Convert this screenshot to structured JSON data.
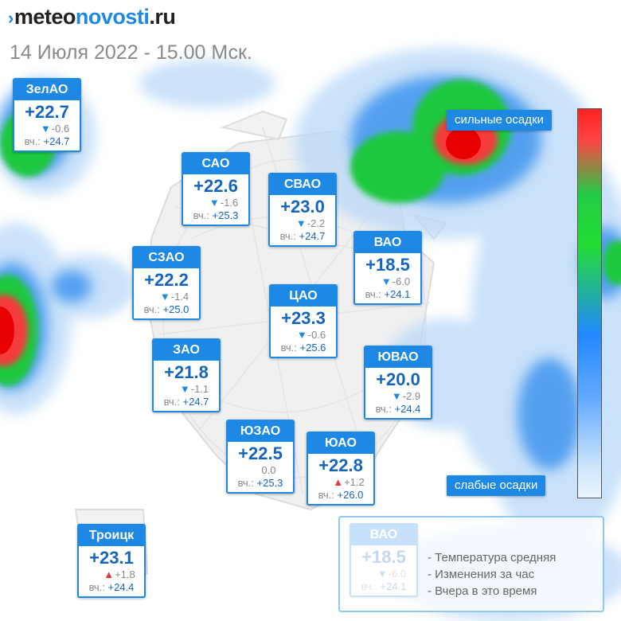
{
  "brand": {
    "part1": "meteo",
    "part2": "novosti",
    "part3": ".ru",
    "mark": "›"
  },
  "subtitle": "14 Июля 2022 - 15.00 Мск.",
  "colors": {
    "accent": "#1e88e5",
    "down_arrow": "#1e88e5",
    "up_arrow": "#e53935",
    "heavy": "#ff2222",
    "medium": "#22cc44",
    "light": "#66aaff"
  },
  "districts": [
    {
      "name": "ЗелАО",
      "temp": "+22.7",
      "trend": "down",
      "arrow": "▼",
      "change": "-0.6",
      "yday_label": "вч.:",
      "yday": "+24.7"
    },
    {
      "name": "САО",
      "temp": "+22.6",
      "trend": "down",
      "arrow": "▼",
      "change": "-1.6",
      "yday_label": "вч.:",
      "yday": "+25.3"
    },
    {
      "name": "СВАО",
      "temp": "+23.0",
      "trend": "down",
      "arrow": "▼",
      "change": "-2.2",
      "yday_label": "вч.:",
      "yday": "+24.7"
    },
    {
      "name": "ВАО",
      "temp": "+18.5",
      "trend": "down",
      "arrow": "▼",
      "change": "-6.0",
      "yday_label": "вч.:",
      "yday": "+24.1"
    },
    {
      "name": "СЗАО",
      "temp": "+22.2",
      "trend": "down",
      "arrow": "▼",
      "change": "-1.4",
      "yday_label": "вч.:",
      "yday": "+25.0"
    },
    {
      "name": "ЦАО",
      "temp": "+23.3",
      "trend": "down",
      "arrow": "▼",
      "change": "-0.6",
      "yday_label": "вч.:",
      "yday": "+25.6"
    },
    {
      "name": "ЗАО",
      "temp": "+21.8",
      "trend": "down",
      "arrow": "▼",
      "change": "-1.1",
      "yday_label": "вч.:",
      "yday": "+24.7"
    },
    {
      "name": "ЮВАО",
      "temp": "+20.0",
      "trend": "down",
      "arrow": "▼",
      "change": "-2.9",
      "yday_label": "вч.:",
      "yday": "+24.4"
    },
    {
      "name": "ЮЗАО",
      "temp": "+22.5",
      "trend": "none",
      "arrow": "",
      "change": "0.0",
      "yday_label": "вч.:",
      "yday": "+25.3"
    },
    {
      "name": "ЮАО",
      "temp": "+22.8",
      "trend": "up",
      "arrow": "▲",
      "change": "+1.2",
      "yday_label": "вч.:",
      "yday": "+26.0"
    },
    {
      "name": "Троицк",
      "temp": "+23.1",
      "trend": "up",
      "arrow": "▲",
      "change": "+1.8",
      "yday_label": "вч.:",
      "yday": "+24.4"
    }
  ],
  "legend": {
    "heavy_label": "сильные осадки",
    "light_label": "слабые осадки",
    "example": {
      "name": "ВАО",
      "temp": "+18.5",
      "trend": "down",
      "arrow": "▼",
      "change": "-6.0",
      "yday_label": "вч.:",
      "yday": "+24.1"
    },
    "explain_lines": [
      "- Температура средняя",
      "- Изменения за час",
      "- Вчера в это время"
    ]
  }
}
